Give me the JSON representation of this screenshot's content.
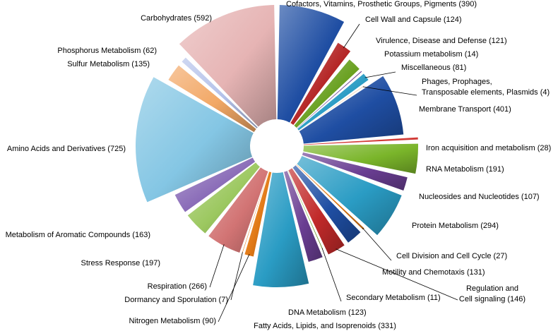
{
  "chart_data": {
    "type": "pie",
    "start_angle_deg": 0,
    "direction": "clockwise",
    "slices": [
      {
        "name": "Cofactors, Vitamins, Prosthetic Groups, Pigments",
        "value": 390,
        "label": "Cofactors, Vitamins, Prosthetic Groups, Pigments (390)",
        "color": "#1f4ea3"
      },
      {
        "name": "Cell Wall and Capsule",
        "value": 124,
        "label": "Cell Wall and Capsule (124)",
        "color": "#b42424"
      },
      {
        "name": "Virulence, Disease and Defense",
        "value": 121,
        "label": "Virulence, Disease and Defense (121)",
        "color": "#6aa121"
      },
      {
        "name": "Potassium metabolism",
        "value": 14,
        "label": "Potassium metabolism (14)",
        "color": "#6a3e92"
      },
      {
        "name": "Miscellaneous",
        "value": 81,
        "label": "Miscellaneous (81)",
        "color": "#2a9cc4"
      },
      {
        "name": "Phages, Prophages, Transposable elements, Plasmids",
        "value": 4,
        "label": "Phages, Prophages,|Transposable elements, Plasmids  (4)",
        "color": "#e27a16"
      },
      {
        "name": "Membrane Transport",
        "value": 401,
        "label": "Membrane Transport (401)",
        "color": "#1f4ea3"
      },
      {
        "name": "Iron acquisition and metabolism",
        "value": 28,
        "label": "Iron acquisition and metabolism  (28)",
        "color": "#d43a36"
      },
      {
        "name": "RNA Metabolism",
        "value": 191,
        "label": "RNA Metabolism (191)",
        "color": "#7ab52a"
      },
      {
        "name": "Nucleosides and Nucleotides",
        "value": 107,
        "label": "Nucleosides and Nucleotides (107)",
        "color": "#6a3e92"
      },
      {
        "name": "Protein Metabolism",
        "value": 294,
        "label": "Protein Metabolism (294)",
        "color": "#2a9cc4"
      },
      {
        "name": "Cell Division and Cell Cycle",
        "value": 27,
        "label": "Cell Division and Cell Cycle (27)",
        "color": "#e27a16"
      },
      {
        "name": "Motility and Chemotaxis",
        "value": 131,
        "label": "Motility and Chemotaxis (131)",
        "color": "#1f4ea3"
      },
      {
        "name": "Regulation and Cell signaling",
        "value": 146,
        "label": "Regulation and|Cell signaling (146)",
        "color": "#c12a2a"
      },
      {
        "name": "Secondary Metabolism",
        "value": 11,
        "label": "Secondary Metabolism (11)",
        "color": "#7ab52a"
      },
      {
        "name": "DNA Metabolism",
        "value": 123,
        "label": "DNA Metabolism (123)",
        "color": "#6a3e92"
      },
      {
        "name": "Fatty Acids, Lipids, and Isoprenoids",
        "value": 331,
        "label": "Fatty Acids, Lipids, and Isoprenoids (331)",
        "color": "#2a9cc4"
      },
      {
        "name": "Nitrogen Metabolism",
        "value": 90,
        "label": "Nitrogen Metabolism (90)",
        "color": "#e27a16"
      },
      {
        "name": "Dormancy and Sporulation",
        "value": 7,
        "label": "Dormancy and Sporulation (7)",
        "color": "#e27a16"
      },
      {
        "name": "Respiration",
        "value": 266,
        "label": "Respiration (266)",
        "color": "#d27474"
      },
      {
        "name": "Stress Response",
        "value": 197,
        "label": "Stress Response (197)",
        "color": "#9cc860"
      },
      {
        "name": "Metabolism of Aromatic Compounds",
        "value": 163,
        "label": "Metabolism of Aromatic Compounds (163)",
        "color": "#8a6cb8"
      },
      {
        "name": "Amino Acids and Derivatives",
        "value": 725,
        "label": "Amino Acids and Derivatives (725)",
        "color": "#84c6e4"
      },
      {
        "name": "Sulfur Metabolism",
        "value": 135,
        "label": "Sulfur Metabolism (135)",
        "color": "#f2a866"
      },
      {
        "name": "Phosphorus Metabolism",
        "value": 62,
        "label": "Phosphorus Metabolism (62)",
        "color": "#b4c2ea"
      },
      {
        "name": "Carbohydrates",
        "value": 592,
        "label": "Carbohydrates (592)",
        "color": "#e6b4b4"
      }
    ]
  }
}
